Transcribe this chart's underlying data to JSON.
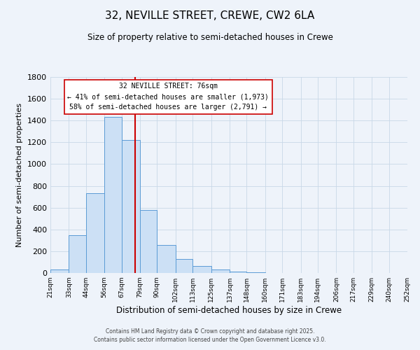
{
  "title": "32, NEVILLE STREET, CREWE, CW2 6LA",
  "subtitle": "Size of property relative to semi-detached houses in Crewe",
  "xlabel": "Distribution of semi-detached houses by size in Crewe",
  "ylabel": "Number of semi-detached properties",
  "bin_labels": [
    "21sqm",
    "33sqm",
    "44sqm",
    "56sqm",
    "67sqm",
    "79sqm",
    "90sqm",
    "102sqm",
    "113sqm",
    "125sqm",
    "137sqm",
    "148sqm",
    "160sqm",
    "171sqm",
    "183sqm",
    "194sqm",
    "206sqm",
    "217sqm",
    "229sqm",
    "240sqm",
    "252sqm"
  ],
  "bar_values": [
    30,
    345,
    735,
    1435,
    1220,
    580,
    255,
    130,
    65,
    30,
    10,
    5,
    0,
    0,
    0,
    0,
    0,
    0,
    0,
    0
  ],
  "bin_edges": [
    21,
    33,
    44,
    56,
    67,
    79,
    90,
    102,
    113,
    125,
    137,
    148,
    160,
    171,
    183,
    194,
    206,
    217,
    229,
    240,
    252
  ],
  "bar_color": "#cce0f5",
  "bar_edge_color": "#5b9bd5",
  "vline_x": 76,
  "vline_color": "#cc0000",
  "annotation_title": "32 NEVILLE STREET: 76sqm",
  "annotation_line1": "← 41% of semi-detached houses are smaller (1,973)",
  "annotation_line2": "58% of semi-detached houses are larger (2,791) →",
  "annotation_box_color": "#ffffff",
  "annotation_box_edge": "#cc0000",
  "ylim": [
    0,
    1800
  ],
  "yticks": [
    0,
    200,
    400,
    600,
    800,
    1000,
    1200,
    1400,
    1600,
    1800
  ],
  "grid_color": "#c8d8e8",
  "background_color": "#eef3fa",
  "footer1": "Contains HM Land Registry data © Crown copyright and database right 2025.",
  "footer2": "Contains public sector information licensed under the Open Government Licence v3.0.",
  "title_fontsize": 11,
  "subtitle_fontsize": 8.5,
  "xlabel_fontsize": 8.5,
  "ylabel_fontsize": 8
}
